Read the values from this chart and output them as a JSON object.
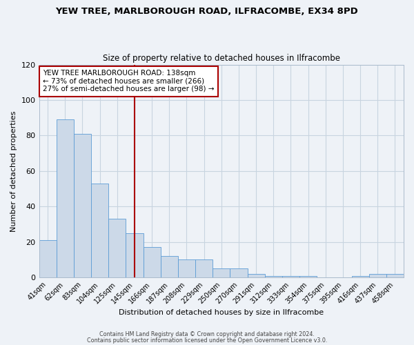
{
  "title": "YEW TREE, MARLBOROUGH ROAD, ILFRACOMBE, EX34 8PD",
  "subtitle": "Size of property relative to detached houses in Ilfracombe",
  "xlabel": "Distribution of detached houses by size in Ilfracombe",
  "ylabel": "Number of detached properties",
  "categories": [
    "41sqm",
    "62sqm",
    "83sqm",
    "104sqm",
    "125sqm",
    "145sqm",
    "166sqm",
    "187sqm",
    "208sqm",
    "229sqm",
    "250sqm",
    "270sqm",
    "291sqm",
    "312sqm",
    "333sqm",
    "354sqm",
    "375sqm",
    "395sqm",
    "416sqm",
    "437sqm",
    "458sqm"
  ],
  "values": [
    21,
    89,
    81,
    53,
    33,
    25,
    17,
    12,
    10,
    10,
    5,
    5,
    2,
    1,
    1,
    1,
    0,
    0,
    1,
    2,
    2
  ],
  "bar_color": "#ccd9e8",
  "bar_edge_color": "#5b9bd5",
  "grid_color": "#c8d4e0",
  "background_color": "#eef2f7",
  "vline_x": 5,
  "vline_color": "#aa0000",
  "annotation_text": "YEW TREE MARLBOROUGH ROAD: 138sqm\n← 73% of detached houses are smaller (266)\n27% of semi-detached houses are larger (98) →",
  "annotation_box_edge_color": "#aa0000",
  "ylim": [
    0,
    120
  ],
  "yticks": [
    0,
    20,
    40,
    60,
    80,
    100,
    120
  ],
  "footer1": "Contains HM Land Registry data © Crown copyright and database right 2024.",
  "footer2": "Contains public sector information licensed under the Open Government Licence v3.0."
}
